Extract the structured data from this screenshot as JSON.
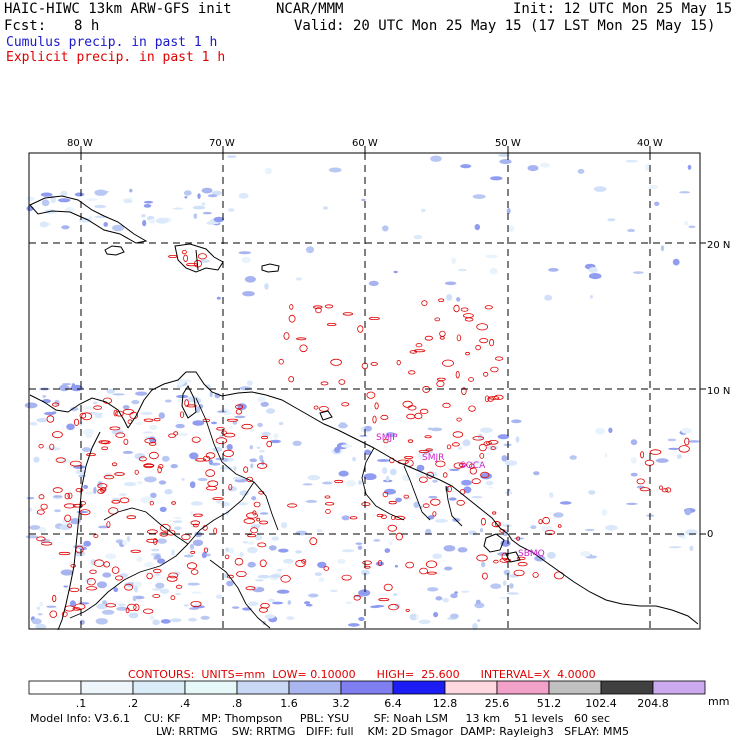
{
  "header": {
    "model": "HAIC-HIWC 13km ARW-GFS init",
    "org": "NCAR/MMM",
    "init": "Init: 12 UTC Mon 25 May 15",
    "fcst_label": "Fcst:",
    "fcst_value": "8 h",
    "valid": "Valid: 20 UTC Mon 25 May 15 (17 LST Mon 25 May 15)",
    "legend_cumulus": "Cumulus precip. in past 1 h",
    "legend_explicit": "Explicit precip. in past 1 h"
  },
  "colors": {
    "cumulus_legend": "#1a1acc",
    "explicit": "#e00000",
    "station_label": "#cc22cc"
  },
  "map": {
    "lon_labels": [
      "80 W",
      "70 W",
      "60 W",
      "50 W",
      "40 W"
    ],
    "lat_labels": [
      "20 N",
      "10 N",
      "0"
    ],
    "stations": [
      "SMJP",
      "SOCA",
      "SMJR",
      "SBMQ"
    ]
  },
  "contours": {
    "units_label": "CONTOURS:  UNITS=mm",
    "low": "LOW= 0.10000",
    "high": "HIGH=  25.600",
    "interval": "INTERVAL=X  4.0000"
  },
  "colorbar": {
    "unit": "mm",
    "labels": [
      ".1",
      ".2",
      ".4",
      ".8",
      "1.6",
      "3.2",
      "6.4",
      "12.8",
      "25.6",
      "51.2",
      "102.4",
      "204.8"
    ],
    "colors": [
      "#ffffff",
      "#eef6fb",
      "#d9ecf8",
      "#e6f8f8",
      "#c9d8f4",
      "#a9b6ef",
      "#7f7ff2",
      "#1c1cf5",
      "#ffd9df",
      "#f2a1c8",
      "#c0c0c0",
      "#404040",
      "#ccaaf0"
    ]
  },
  "model_info": {
    "line1": "Model Info: V3.6.1    CU: KF      MP: Thompson     PBL: YSU       SF: Noah LSM     13 km    51 levels   60 sec",
    "line2": "LW: RRTMG    SW: RRTMG   DIFF: full    KM: 2D Smagor  DAMP: Rayleigh3   SFLAY: MM5"
  }
}
